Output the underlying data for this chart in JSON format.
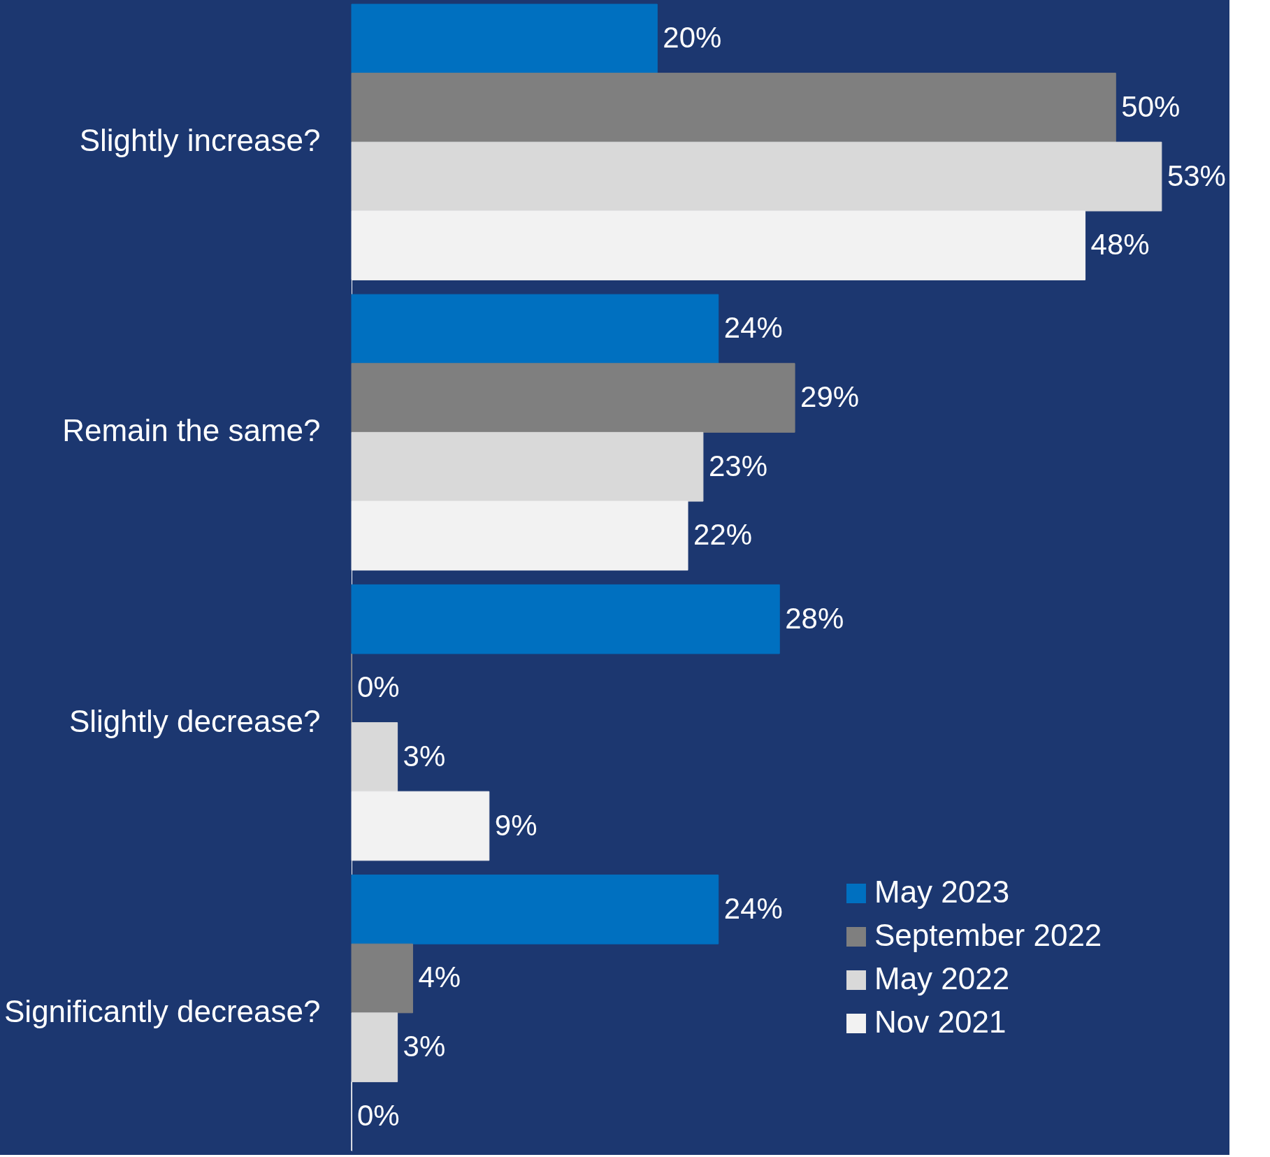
{
  "chart_data": {
    "type": "bar",
    "orientation": "horizontal",
    "categories": [
      "Slightly increase?",
      "Remain the same?",
      "Slightly decrease?",
      "Significantly decrease?"
    ],
    "series": [
      {
        "name": "May 2023",
        "color": "#0070c0",
        "values": [
          20,
          24,
          28,
          24
        ],
        "value_labels": [
          "20%",
          "24%",
          "28%",
          "24%"
        ]
      },
      {
        "name": "September 2022",
        "color": "#7f7f7f",
        "values": [
          50,
          29,
          0,
          4
        ],
        "value_labels": [
          "50%",
          "29%",
          "0%",
          "4%"
        ]
      },
      {
        "name": "May 2022",
        "color": "#d9d9d9",
        "values": [
          53,
          23,
          3,
          3
        ],
        "value_labels": [
          "53%",
          "23%",
          "3%",
          "3%"
        ]
      },
      {
        "name": "Nov 2021",
        "color": "#f2f2f2",
        "values": [
          48,
          22,
          9,
          0
        ],
        "value_labels": [
          "48%",
          "22%",
          "9%",
          "0%"
        ]
      }
    ],
    "data_labels": true,
    "legend": "bottom right"
  }
}
